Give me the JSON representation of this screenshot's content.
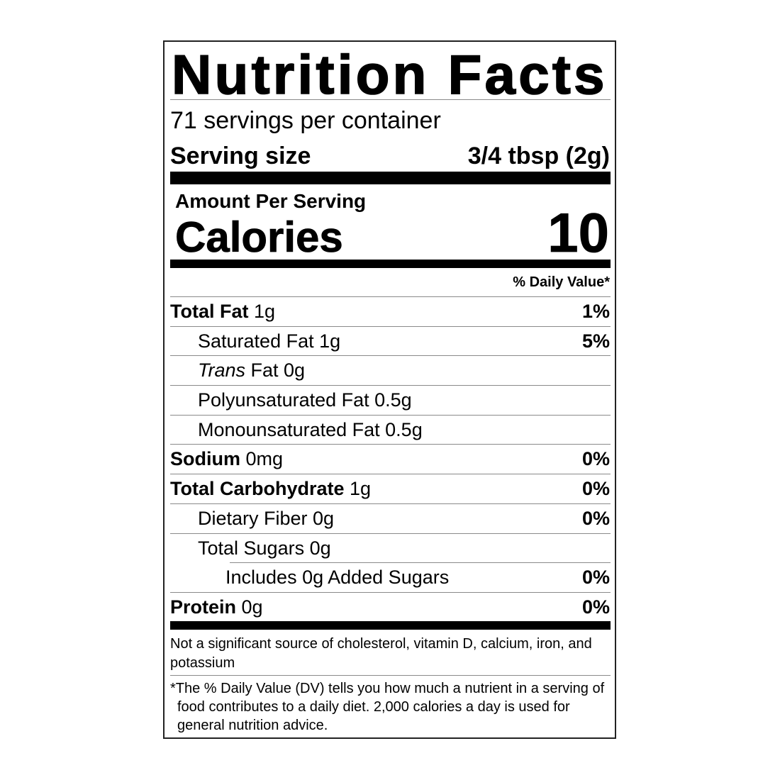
{
  "title": "Nutrition Facts",
  "servings_per_container": "71 servings per container",
  "serving_size": {
    "label": "Serving size",
    "value": "3/4 tbsp (2g)"
  },
  "amount_per_serving": "Amount Per Serving",
  "calories": {
    "label": "Calories",
    "value": "10"
  },
  "daily_value_header": "% Daily Value*",
  "nutrients": [
    {
      "label": "Total Fat",
      "style": "bold",
      "rest": " 1g",
      "dv": "1%",
      "indent": 0
    },
    {
      "label": "Saturated Fat 1g",
      "style": "normal",
      "rest": "",
      "dv": "5%",
      "indent": 1
    },
    {
      "label": "Trans",
      "style": "italic",
      "rest": " Fat 0g",
      "dv": "",
      "indent": 1
    },
    {
      "label": "Polyunsaturated Fat 0.5g",
      "style": "normal",
      "rest": "",
      "dv": "",
      "indent": 1
    },
    {
      "label": "Monounsaturated Fat 0.5g",
      "style": "normal",
      "rest": "",
      "dv": "",
      "indent": 1
    },
    {
      "label": "Sodium",
      "style": "bold",
      "rest": " 0mg",
      "dv": "0%",
      "indent": 0
    },
    {
      "label": "Total Carbohydrate",
      "style": "bold",
      "rest": " 1g",
      "dv": "0%",
      "indent": 0
    },
    {
      "label": "Dietary Fiber 0g",
      "style": "normal",
      "rest": "",
      "dv": "0%",
      "indent": 1
    },
    {
      "label": "Total Sugars 0g",
      "style": "normal",
      "rest": "",
      "dv": "",
      "indent": 1
    },
    {
      "label": "Includes 0g Added Sugars",
      "style": "normal",
      "rest": "",
      "dv": "0%",
      "indent": 2
    },
    {
      "label": "Protein",
      "style": "bold",
      "rest": " 0g",
      "dv": "0%",
      "indent": 0
    }
  ],
  "footnote_nutrients": "Not a significant source of cholesterol, vitamin D, calcium, iron, and potassium",
  "footnote_dv": "*The % Daily Value (DV) tells you how much a nutrient in a serving of food contributes to a daily diet. 2,000 calories a day is used for general nutrition advice."
}
